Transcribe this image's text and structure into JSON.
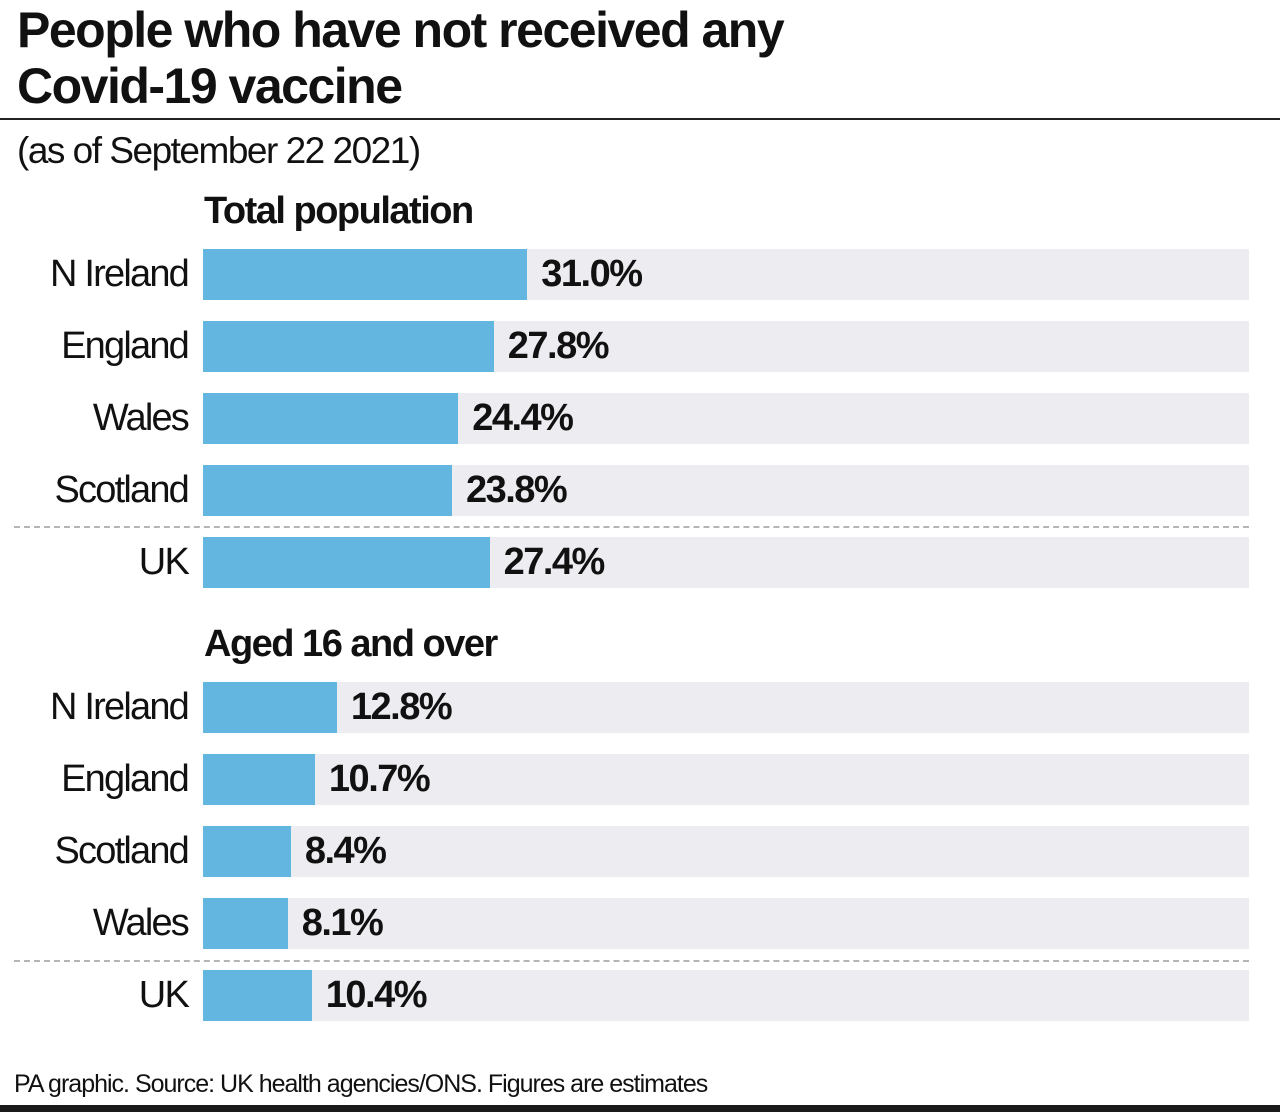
{
  "chart_data": [
    {
      "type": "bar",
      "orientation": "horizontal",
      "title": "Total population",
      "categories": [
        "N Ireland",
        "England",
        "Wales",
        "Scotland",
        "UK"
      ],
      "values": [
        31.0,
        27.8,
        24.4,
        23.8,
        27.4
      ],
      "value_labels": [
        "31.0%",
        "27.8%",
        "24.4%",
        "23.8%",
        "27.4%"
      ],
      "xlim": [
        0,
        100
      ],
      "grid": false
    },
    {
      "type": "bar",
      "orientation": "horizontal",
      "title": "Aged 16 and over",
      "categories": [
        "N Ireland",
        "England",
        "Scotland",
        "Wales",
        "UK"
      ],
      "values": [
        12.8,
        10.7,
        8.4,
        8.1,
        10.4
      ],
      "value_labels": [
        "12.8%",
        "10.7%",
        "8.4%",
        "8.1%",
        "10.4%"
      ],
      "xlim": [
        0,
        100
      ],
      "grid": false
    }
  ],
  "header": {
    "title_line1": "People who have not received any",
    "title_line2": "Covid-19 vaccine",
    "subtitle": "(as of September 22 2021)"
  },
  "footer": "PA graphic. Source: UK health agencies/ONS. Figures are estimates",
  "colors": {
    "bar": "#63b6e0",
    "track": "#ececf1",
    "text": "#111111"
  }
}
